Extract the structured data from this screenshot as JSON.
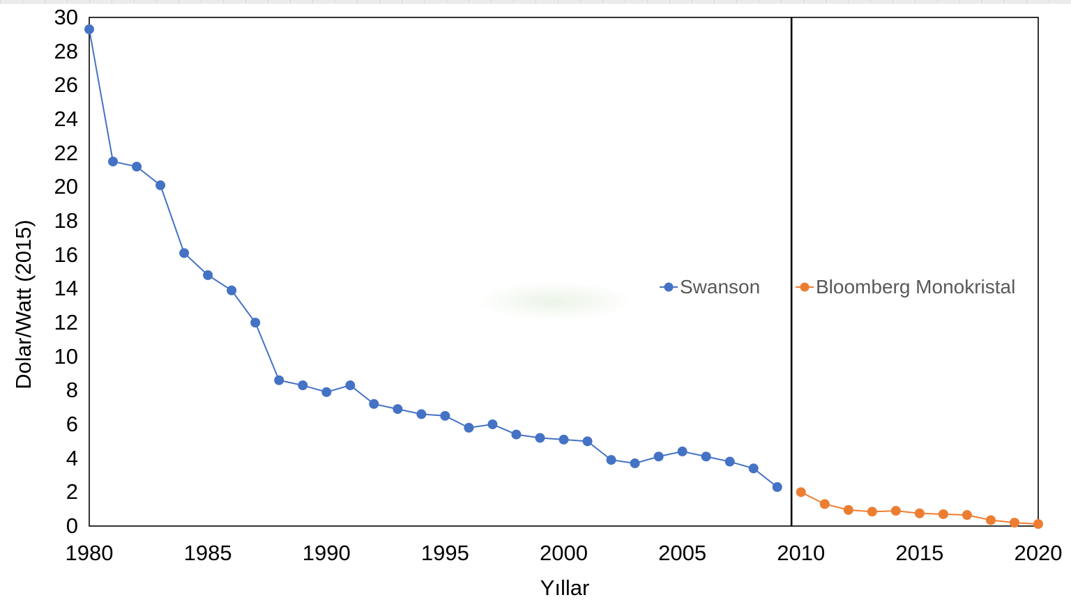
{
  "chart_data": {
    "type": "line",
    "title": "",
    "xlabel": "Yıllar",
    "ylabel": "Dolar/Watt (2015)",
    "xlim": [
      1980,
      2020
    ],
    "ylim": [
      0,
      30
    ],
    "x_ticks": [
      1980,
      1985,
      1990,
      1995,
      2000,
      2005,
      2010,
      2015,
      2020
    ],
    "y_ticks": [
      0,
      2,
      4,
      6,
      8,
      10,
      12,
      14,
      16,
      18,
      20,
      22,
      24,
      26,
      28,
      30
    ],
    "grid": false,
    "legend_position": "inside-right, centered vertically around y=14",
    "axis_text_color": "#000000",
    "legend_text_color": "#595959",
    "plot_border_color": "#000000",
    "divider_line": {
      "year": 2009.6,
      "color": "#000000"
    },
    "series": [
      {
        "name": "Swanson",
        "color": "#4472C4",
        "x": [
          1980,
          1981,
          1982,
          1983,
          1984,
          1985,
          1986,
          1987,
          1988,
          1989,
          1990,
          1991,
          1992,
          1993,
          1994,
          1995,
          1996,
          1997,
          1998,
          1999,
          2000,
          2001,
          2002,
          2003,
          2004,
          2005,
          2006,
          2007,
          2008,
          2009
        ],
        "values": [
          29.3,
          21.5,
          21.2,
          20.1,
          16.1,
          14.8,
          13.9,
          12.0,
          8.6,
          8.3,
          7.9,
          8.3,
          7.2,
          6.9,
          6.6,
          6.5,
          5.8,
          6.0,
          5.4,
          5.2,
          5.1,
          5.0,
          3.9,
          3.7,
          4.1,
          4.4,
          4.1,
          3.8,
          3.4,
          2.3
        ]
      },
      {
        "name": "Bloomberg Monokristal",
        "color": "#ED7D31",
        "x": [
          2010,
          2011,
          2012,
          2013,
          2014,
          2015,
          2016,
          2017,
          2018,
          2019,
          2020
        ],
        "values": [
          2.0,
          1.3,
          0.95,
          0.85,
          0.9,
          0.75,
          0.7,
          0.65,
          0.35,
          0.2,
          0.12
        ]
      }
    ]
  }
}
